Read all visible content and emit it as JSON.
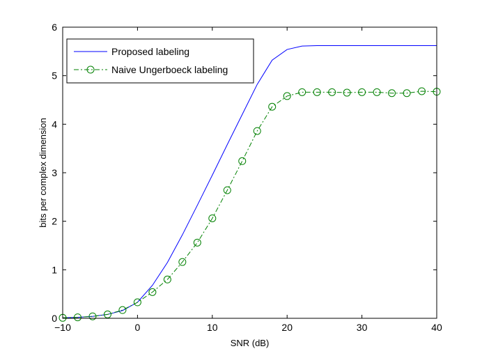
{
  "chart_data": {
    "type": "line",
    "title": "",
    "xlabel": "SNR (dB)",
    "ylabel": "bits per complex dimension",
    "xlim": [
      -10,
      40
    ],
    "ylim": [
      0,
      6
    ],
    "xticks": [
      -10,
      0,
      10,
      20,
      30,
      40
    ],
    "yticks": [
      0,
      1,
      2,
      3,
      4,
      5,
      6
    ],
    "xtick_labels": [
      "−10",
      "0",
      "10",
      "20",
      "30",
      "40"
    ],
    "ytick_labels": [
      "0",
      "1",
      "2",
      "3",
      "4",
      "5",
      "6"
    ],
    "grid": false,
    "legend": "top-left",
    "series": [
      {
        "name": "Proposed labeling",
        "color": "#0000ff",
        "style": "solid",
        "marker": "none",
        "x": [
          -10,
          -8,
          -6,
          -4,
          -2,
          0,
          2,
          4,
          6,
          8,
          10,
          12,
          14,
          16,
          18,
          20,
          22,
          24,
          26,
          28,
          30,
          32,
          34,
          36,
          38,
          40
        ],
        "y": [
          0.01,
          0.02,
          0.04,
          0.08,
          0.16,
          0.33,
          0.68,
          1.15,
          1.72,
          2.33,
          2.95,
          3.58,
          4.2,
          4.82,
          5.32,
          5.54,
          5.61,
          5.62,
          5.62,
          5.62,
          5.62,
          5.62,
          5.62,
          5.62,
          5.62,
          5.62
        ]
      },
      {
        "name": "Naive Ungerboeck labeling",
        "color": "#008000",
        "style": "dash-dot",
        "marker": "circle",
        "x": [
          -10,
          -8,
          -6,
          -4,
          -2,
          0,
          2,
          4,
          6,
          8,
          10,
          12,
          14,
          16,
          18,
          20,
          22,
          24,
          26,
          28,
          30,
          32,
          34,
          36,
          38,
          40
        ],
        "y": [
          0.01,
          0.02,
          0.04,
          0.08,
          0.17,
          0.33,
          0.54,
          0.8,
          1.16,
          1.56,
          2.06,
          2.64,
          3.24,
          3.86,
          4.36,
          4.58,
          4.66,
          4.66,
          4.66,
          4.65,
          4.66,
          4.66,
          4.64,
          4.64,
          4.68,
          4.67
        ]
      }
    ]
  }
}
